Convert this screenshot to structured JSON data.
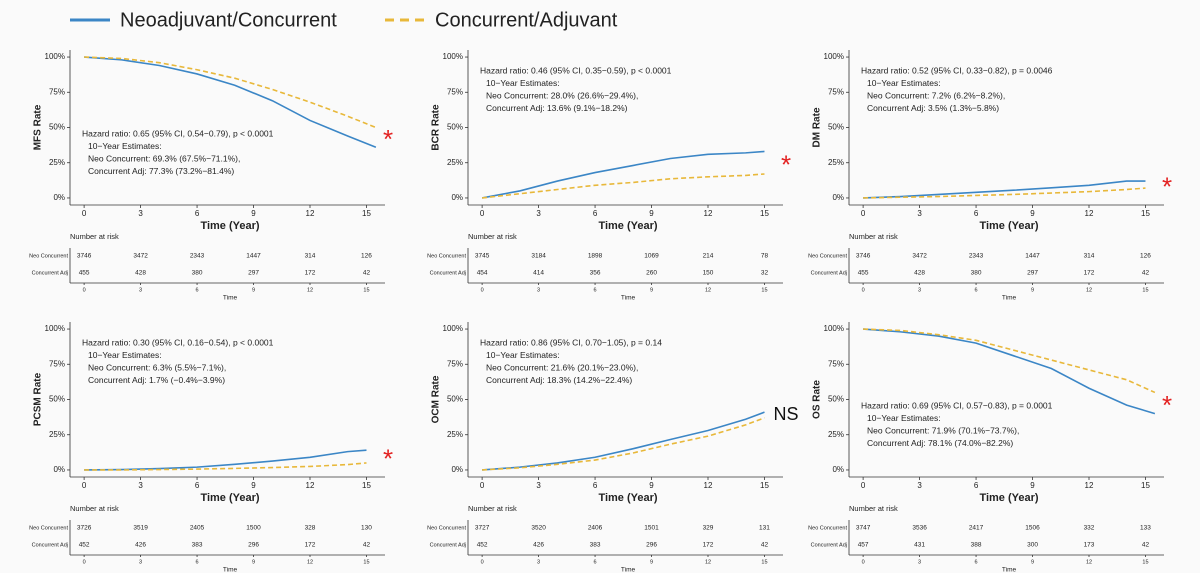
{
  "legend": [
    {
      "name": "Neoadjuvant/Concurrent",
      "color": "#3b86c6",
      "dash": false
    },
    {
      "name": "Concurrent/Adjuvant",
      "color": "#e8b83a",
      "dash": true
    }
  ],
  "chart_data": [
    {
      "type": "line",
      "ylabel": "MFS Rate",
      "xlabel": "Time (Year)",
      "x": [
        0,
        2,
        4,
        6,
        8,
        10,
        12,
        14,
        15.5
      ],
      "series": [
        {
          "color": "#3b86c6",
          "values": [
            100,
            98,
            94,
            88,
            80,
            69,
            55,
            44,
            36
          ]
        },
        {
          "color": "#e8b83a",
          "dash": true,
          "values": [
            100,
            99,
            96,
            91,
            85,
            77,
            68,
            58,
            50
          ]
        }
      ],
      "xlim": [
        -0.75,
        16.25
      ],
      "xticks": [
        0,
        3,
        6,
        9,
        12,
        15
      ],
      "ylim": [
        -5,
        105
      ],
      "yticks": [
        {
          "value": 0,
          "label": "0%"
        },
        {
          "value": 25,
          "label": "25%"
        },
        {
          "value": 50,
          "label": "50%"
        },
        {
          "value": 75,
          "label": "75%"
        },
        {
          "value": 100,
          "label": "100%"
        }
      ],
      "annotation": [
        "Hazard ratio: 0.65 (95% CI, 0.54−0.79), p < 0.0001",
        "10−Year Estimates:",
        "Neo Concurrent: 69.3% (67.5%−71.1%),",
        "Concurrent Adj: 77.3% (73.2%−81.4%)"
      ],
      "annotation_corner": "bottom",
      "marker": "*",
      "marker_color": "#e32020",
      "risk_table": {
        "title": "Number at risk",
        "xlabel": "Time",
        "xticks": [
          0,
          3,
          6,
          9,
          12,
          15
        ],
        "rows": [
          {
            "label": "Neo Concurrent",
            "values": [
              3746,
              3472,
              2343,
              1447,
              314,
              126
            ]
          },
          {
            "label": "Concurrent Adj",
            "values": [
              455,
              428,
              380,
              297,
              172,
              42
            ]
          }
        ]
      }
    },
    {
      "type": "line",
      "ylabel": "BCR Rate",
      "xlabel": "Time (Year)",
      "x": [
        0,
        2,
        4,
        6,
        8,
        10,
        12,
        14,
        15
      ],
      "series": [
        {
          "color": "#3b86c6",
          "values": [
            0,
            5,
            12,
            18,
            23,
            28,
            31,
            32,
            33
          ]
        },
        {
          "color": "#e8b83a",
          "dash": true,
          "values": [
            0,
            3,
            6,
            9,
            11,
            13.6,
            15,
            16,
            17
          ]
        }
      ],
      "xlim": [
        -0.75,
        16.25
      ],
      "xticks": [
        0,
        3,
        6,
        9,
        12,
        15
      ],
      "ylim": [
        -5,
        105
      ],
      "yticks": [
        {
          "value": 0,
          "label": "0%"
        },
        {
          "value": 25,
          "label": "25%"
        },
        {
          "value": 50,
          "label": "50%"
        },
        {
          "value": 75,
          "label": "75%"
        },
        {
          "value": 100,
          "label": "100%"
        }
      ],
      "annotation": [
        "Hazard ratio: 0.46 (95% CI, 0.35−0.59), p < 0.0001",
        "10−Year Estimates:",
        "Neo Concurrent: 28.0% (26.6%−29.4%),",
        "Concurrent Adj: 13.6% (9.1%−18.2%)"
      ],
      "annotation_corner": "top",
      "marker": "*",
      "marker_color": "#e32020",
      "risk_table": {
        "title": "Number at risk",
        "xlabel": "Time",
        "xticks": [
          0,
          3,
          6,
          9,
          12,
          15
        ],
        "rows": [
          {
            "label": "Neo Concurrent",
            "values": [
              3745,
              3184,
              1898,
              1069,
              214,
              78
            ]
          },
          {
            "label": "Concurrent Adj",
            "values": [
              454,
              414,
              356,
              260,
              150,
              32
            ]
          }
        ]
      }
    },
    {
      "type": "line",
      "ylabel": "DM Rate",
      "xlabel": "Time (Year)",
      "x": [
        0,
        2,
        4,
        6,
        8,
        10,
        12,
        14,
        15
      ],
      "series": [
        {
          "color": "#3b86c6",
          "values": [
            0,
            1,
            2.5,
            4,
            5.5,
            7.2,
            9,
            12,
            12
          ]
        },
        {
          "color": "#e8b83a",
          "dash": true,
          "values": [
            0,
            0.5,
            1,
            1.8,
            2.5,
            3.5,
            4.5,
            6,
            7
          ]
        }
      ],
      "xlim": [
        -0.75,
        16.25
      ],
      "xticks": [
        0,
        3,
        6,
        9,
        12,
        15
      ],
      "ylim": [
        -5,
        105
      ],
      "yticks": [
        {
          "value": 0,
          "label": "0%"
        },
        {
          "value": 25,
          "label": "25%"
        },
        {
          "value": 50,
          "label": "50%"
        },
        {
          "value": 75,
          "label": "75%"
        },
        {
          "value": 100,
          "label": "100%"
        }
      ],
      "annotation": [
        "Hazard ratio: 0.52 (95% CI, 0.33−0.82), p = 0.0046",
        "10−Year Estimates:",
        "Neo Concurrent: 7.2% (6.2%−8.2%),",
        "Concurrent Adj: 3.5% (1.3%−5.8%)"
      ],
      "annotation_corner": "top",
      "marker": "*",
      "marker_color": "#e32020",
      "risk_table": {
        "title": "Number at risk",
        "xlabel": "Time",
        "xticks": [
          0,
          3,
          6,
          9,
          12,
          15
        ],
        "rows": [
          {
            "label": "Neo Concurrent",
            "values": [
              3746,
              3472,
              2343,
              1447,
              314,
              126
            ]
          },
          {
            "label": "Concurrent Adj",
            "values": [
              455,
              428,
              380,
              297,
              172,
              42
            ]
          }
        ]
      }
    },
    {
      "type": "line",
      "ylabel": "PCSM Rate",
      "xlabel": "Time (Year)",
      "x": [
        0,
        2,
        4,
        6,
        8,
        10,
        12,
        14,
        15
      ],
      "series": [
        {
          "color": "#3b86c6",
          "values": [
            0,
            0.3,
            1,
            2,
            4,
            6.3,
            9,
            13,
            14
          ]
        },
        {
          "color": "#e8b83a",
          "dash": true,
          "values": [
            0,
            0,
            0.3,
            0.6,
            1.1,
            1.7,
            2.5,
            3.8,
            5
          ]
        }
      ],
      "xlim": [
        -0.75,
        16.25
      ],
      "xticks": [
        0,
        3,
        6,
        9,
        12,
        15
      ],
      "ylim": [
        -5,
        105
      ],
      "yticks": [
        {
          "value": 0,
          "label": "0%"
        },
        {
          "value": 25,
          "label": "25%"
        },
        {
          "value": 50,
          "label": "50%"
        },
        {
          "value": 75,
          "label": "75%"
        },
        {
          "value": 100,
          "label": "100%"
        }
      ],
      "annotation": [
        "Hazard ratio: 0.30 (95% CI, 0.16−0.54), p < 0.0001",
        "10−Year Estimates:",
        "Neo Concurrent: 6.3% (5.5%−7.1%),",
        "Concurrent Adj: 1.7% (−0.4%−3.9%)"
      ],
      "annotation_corner": "top",
      "marker": "*",
      "marker_color": "#e32020",
      "risk_table": {
        "title": "Number at risk",
        "xlabel": "Time",
        "xticks": [
          0,
          3,
          6,
          9,
          12,
          15
        ],
        "rows": [
          {
            "label": "Neo Concurrent",
            "values": [
              3726,
              3519,
              2405,
              1500,
              328,
              130
            ]
          },
          {
            "label": "Concurrent Adj",
            "values": [
              452,
              426,
              383,
              296,
              172,
              42
            ]
          }
        ]
      }
    },
    {
      "type": "line",
      "ylabel": "OCM Rate",
      "xlabel": "Time (Year)",
      "x": [
        0,
        2,
        4,
        6,
        8,
        10,
        12,
        14,
        15
      ],
      "series": [
        {
          "color": "#3b86c6",
          "values": [
            0,
            2,
            5,
            9,
            15,
            21.6,
            28,
            36,
            41
          ]
        },
        {
          "color": "#e8b83a",
          "dash": true,
          "values": [
            0,
            1.5,
            4,
            7,
            12,
            18.3,
            24,
            32,
            37
          ]
        }
      ],
      "xlim": [
        -0.75,
        16.25
      ],
      "xticks": [
        0,
        3,
        6,
        9,
        12,
        15
      ],
      "ylim": [
        -5,
        105
      ],
      "yticks": [
        {
          "value": 0,
          "label": "0%"
        },
        {
          "value": 25,
          "label": "25%"
        },
        {
          "value": 50,
          "label": "50%"
        },
        {
          "value": 75,
          "label": "75%"
        },
        {
          "value": 100,
          "label": "100%"
        }
      ],
      "annotation": [
        "Hazard ratio: 0.86 (95% CI, 0.70−1.05), p = 0.14",
        "10−Year Estimates:",
        "Neo Concurrent: 21.6% (20.1%−23.0%),",
        "Concurrent Adj: 18.3% (14.2%−22.4%)"
      ],
      "annotation_corner": "top",
      "marker": "NS",
      "marker_color": "#111111",
      "risk_table": {
        "title": "Number at risk",
        "xlabel": "Time",
        "xticks": [
          0,
          3,
          6,
          9,
          12,
          15
        ],
        "rows": [
          {
            "label": "Neo Concurrent",
            "values": [
              3727,
              3520,
              2406,
              1501,
              329,
              131
            ]
          },
          {
            "label": "Concurrent Adj",
            "values": [
              452,
              426,
              383,
              296,
              172,
              42
            ]
          }
        ]
      }
    },
    {
      "type": "line",
      "ylabel": "OS Rate",
      "xlabel": "Time (Year)",
      "x": [
        0,
        2,
        4,
        6,
        8,
        10,
        12,
        14,
        15.5
      ],
      "series": [
        {
          "color": "#3b86c6",
          "values": [
            100,
            98,
            95,
            90,
            81,
            72,
            58,
            46,
            40
          ]
        },
        {
          "color": "#e8b83a",
          "dash": true,
          "values": [
            100,
            99,
            96,
            92,
            85,
            78,
            71,
            64,
            55
          ]
        }
      ],
      "xlim": [
        -0.75,
        16.25
      ],
      "xticks": [
        0,
        3,
        6,
        9,
        12,
        15
      ],
      "ylim": [
        -5,
        105
      ],
      "yticks": [
        {
          "value": 0,
          "label": "0%"
        },
        {
          "value": 25,
          "label": "25%"
        },
        {
          "value": 50,
          "label": "50%"
        },
        {
          "value": 75,
          "label": "75%"
        },
        {
          "value": 100,
          "label": "100%"
        }
      ],
      "annotation": [
        "Hazard ratio: 0.69 (95% CI, 0.57−0.83), p = 0.0001",
        "10−Year Estimates:",
        "Neo Concurrent: 71.9% (70.1%−73.7%),",
        "Concurrent Adj: 78.1% (74.0%−82.2%)"
      ],
      "annotation_corner": "bottom",
      "marker": "*",
      "marker_color": "#e32020",
      "risk_table": {
        "title": "Number at risk",
        "xlabel": "Time",
        "xticks": [
          0,
          3,
          6,
          9,
          12,
          15
        ],
        "rows": [
          {
            "label": "Neo Concurrent",
            "values": [
              3747,
              3536,
              2417,
              1506,
              332,
              133
            ]
          },
          {
            "label": "Concurrent Adj",
            "values": [
              457,
              431,
              388,
              300,
              173,
              42
            ]
          }
        ]
      }
    }
  ]
}
